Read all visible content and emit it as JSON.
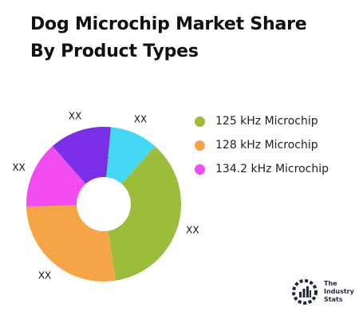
{
  "title_lines": [
    "Dog Microchip Market Share",
    "By Product Types"
  ],
  "chart_data": {
    "type": "pie",
    "donut": true,
    "title": "Dog Microchip Market Share By Product Types",
    "slices": [
      {
        "label": "125 kHz Microchip",
        "value": 36,
        "color": "#9cbc3c",
        "data_label": "XX"
      },
      {
        "label": "128 kHz Microchip",
        "value": 27,
        "color": "#f5a547",
        "data_label": "XX"
      },
      {
        "label": "",
        "value": 14,
        "color": "#f04cf0",
        "data_label": "XX"
      },
      {
        "label": "",
        "value": 13,
        "color": "#7a2fe6",
        "data_label": "XX"
      },
      {
        "label": "",
        "value": 10,
        "color": "#44d8f4",
        "data_label": "XX"
      }
    ],
    "legend_position": "right"
  },
  "legend": [
    {
      "label": "125 kHz Microchip",
      "color": "#9cbc3c"
    },
    {
      "label": "128 kHz Microchip",
      "color": "#f5a547"
    },
    {
      "label": "134.2 kHz Microchip",
      "color": "#f04cf0"
    }
  ],
  "logo": {
    "lines": [
      "The",
      "Industry",
      "Stats"
    ],
    "icon": "industry-gear-icon"
  }
}
